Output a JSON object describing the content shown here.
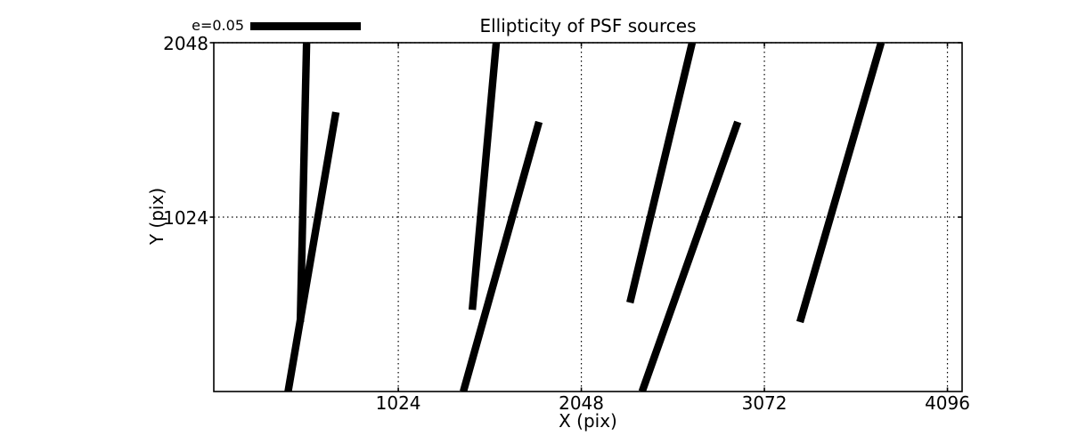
{
  "figure": {
    "background": "#ffffff",
    "foreground": "#000000"
  },
  "chart_data": {
    "type": "line",
    "subtype": "psf-ellipticity-whiskers",
    "title": "Ellipticity of PSF sources",
    "xlabel": "X (pix)",
    "ylabel": "Y (pix)",
    "xlim": [
      -8,
      4178
    ],
    "ylim": [
      0,
      2048
    ],
    "xticks": [
      1024,
      2048,
      3072,
      4096
    ],
    "yticks": [
      1024,
      2048
    ],
    "grid": "dotted",
    "line_color": "#000000",
    "legend": {
      "label": "e=0.05",
      "position": "upper-left-outside",
      "bar_data_length": 618
    },
    "series": [
      {
        "name": "psf-whiskers",
        "segments": [
          {
            "x1": 511,
            "y1": 2048,
            "x2": 476,
            "y2": 408
          },
          {
            "x1": 675,
            "y1": 1640,
            "x2": 405,
            "y2": -16
          },
          {
            "x1": 1572,
            "y1": 2048,
            "x2": 1438,
            "y2": 480
          },
          {
            "x1": 1811,
            "y1": 1583,
            "x2": 1388,
            "y2": 0
          },
          {
            "x1": 2668,
            "y1": 2048,
            "x2": 2320,
            "y2": 522
          },
          {
            "x1": 2923,
            "y1": 1583,
            "x2": 2388,
            "y2": 0
          },
          {
            "x1": 3725,
            "y1": 2048,
            "x2": 3271,
            "y2": 408
          }
        ]
      }
    ]
  }
}
